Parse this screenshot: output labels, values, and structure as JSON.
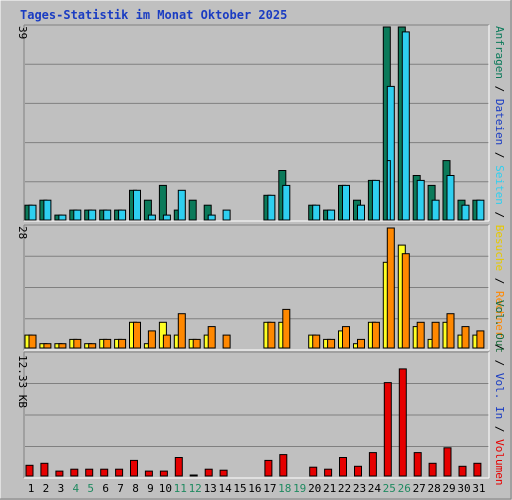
{
  "chart_data": {
    "title": "Tages-Statistik im Monat Oktober 2025",
    "days": [
      "1",
      "2",
      "3",
      "4",
      "5",
      "6",
      "7",
      "8",
      "9",
      "10",
      "11",
      "12",
      "13",
      "14",
      "15",
      "16",
      "17",
      "18",
      "19",
      "20",
      "21",
      "22",
      "23",
      "24",
      "25",
      "26",
      "27",
      "28",
      "29",
      "30",
      "31"
    ],
    "weekend_days": [
      "4",
      "5",
      "11",
      "12",
      "18",
      "19",
      "25",
      "26"
    ],
    "colors": {
      "anfragen": "#0b7a5a",
      "dateien": "#2ecff0",
      "seiten": "#2ecff0",
      "besuche": "#ffff22",
      "rechner": "#ff8800",
      "volumen": "#e60000",
      "weekday_tick": "#000000",
      "weekend_tick": "#1f8a60"
    },
    "charts": [
      {
        "type": "bar",
        "name": "top",
        "ymax_label": "39",
        "ymax": 39,
        "series": [
          {
            "name": "Anfragen",
            "values": [
              3,
              4,
              1,
              2,
              2,
              2,
              2,
              6,
              4,
              7,
              2,
              4,
              3,
              0,
              0,
              0,
              5,
              10,
              0,
              3,
              2,
              7,
              4,
              8,
              39,
              39,
              9,
              7,
              12,
              4,
              4
            ]
          },
          {
            "name": "Dateien",
            "values": [
              3,
              4,
              1,
              2,
              2,
              2,
              2,
              6,
              1,
              1,
              6,
              0,
              1,
              2,
              0,
              0,
              5,
              7,
              0,
              3,
              2,
              7,
              3,
              8,
              27,
              38,
              8,
              4,
              9,
              3,
              4
            ]
          },
          {
            "name": "Seiten",
            "values": [
              0,
              0,
              0,
              0,
              0,
              0,
              0,
              0,
              0,
              0,
              0,
              0,
              0,
              0,
              0,
              0,
              0,
              0,
              0,
              0,
              0,
              0,
              0,
              0,
              12,
              0,
              0,
              0,
              0,
              0,
              0
            ]
          }
        ]
      },
      {
        "type": "bar",
        "name": "middle",
        "ymax_label": "28",
        "ymax": 28,
        "series": [
          {
            "name": "Besuche",
            "values": [
              3,
              1,
              1,
              2,
              1,
              2,
              2,
              6,
              1,
              6,
              3,
              2,
              3,
              0,
              0,
              0,
              6,
              6,
              0,
              3,
              2,
              4,
              1,
              6,
              20,
              24,
              5,
              2,
              6,
              3,
              3
            ]
          },
          {
            "name": "Rechner",
            "values": [
              3,
              1,
              1,
              2,
              1,
              2,
              2,
              6,
              4,
              3,
              8,
              2,
              5,
              3,
              0,
              0,
              6,
              9,
              0,
              3,
              2,
              5,
              2,
              6,
              28,
              22,
              6,
              6,
              8,
              5,
              4
            ]
          }
        ]
      },
      {
        "type": "bar",
        "name": "bottom",
        "ymax_label": "12.33 KB",
        "ymax": 12.33,
        "series": [
          {
            "name": "Volumen",
            "values": [
              1.1,
              1.3,
              0.5,
              0.7,
              0.7,
              0.7,
              0.7,
              1.6,
              0.5,
              0.5,
              1.9,
              0.1,
              0.7,
              0.6,
              0,
              0,
              1.6,
              2.2,
              0,
              0.9,
              0.7,
              1.9,
              1.0,
              2.4,
              9.6,
              11.0,
              2.4,
              1.3,
              2.9,
              1.0,
              1.3
            ]
          }
        ]
      }
    ],
    "legend_top": [
      {
        "text": "Anfragen",
        "color": "#0b7a5a"
      },
      {
        "text": " / ",
        "color": "#000000"
      },
      {
        "text": "Dateien",
        "color": "#1a3cc2"
      },
      {
        "text": " / ",
        "color": "#000000"
      },
      {
        "text": "Seiten",
        "color": "#2ecff0"
      },
      {
        "text": " / ",
        "color": "#000000"
      },
      {
        "text": "Besuche",
        "color": "#e6c800"
      },
      {
        "text": " / ",
        "color": "#000000"
      },
      {
        "text": "Rechner",
        "color": "#ff8800"
      },
      {
        "text": " / ",
        "color": "#000000"
      }
    ],
    "legend_bottom": [
      {
        "text": "Vol. Out",
        "color": "#1a6a3a"
      },
      {
        "text": " / ",
        "color": "#000000"
      },
      {
        "text": "Vol. In",
        "color": "#1a3cc2"
      },
      {
        "text": " / ",
        "color": "#000000"
      },
      {
        "text": "Volumen",
        "color": "#e60000"
      }
    ]
  }
}
